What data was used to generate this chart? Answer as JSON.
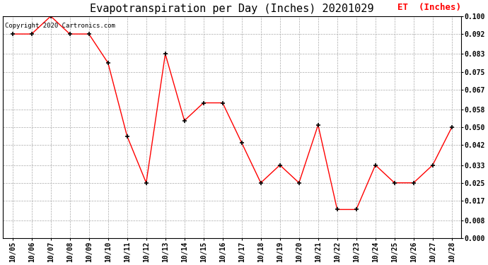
{
  "title": "Evapotranspiration per Day (Inches) 20201029",
  "legend_label": "ET  (Inches)",
  "copyright_text": "Copyright 2020 Cartronics.com",
  "dates": [
    "10/05",
    "10/06",
    "10/07",
    "10/08",
    "10/09",
    "10/10",
    "10/11",
    "10/12",
    "10/13",
    "10/14",
    "10/15",
    "10/16",
    "10/17",
    "10/18",
    "10/19",
    "10/20",
    "10/21",
    "10/22",
    "10/23",
    "10/24",
    "10/25",
    "10/26",
    "10/27",
    "10/28"
  ],
  "values": [
    0.092,
    0.092,
    0.1,
    0.092,
    0.092,
    0.079,
    0.046,
    0.025,
    0.083,
    0.053,
    0.061,
    0.061,
    0.043,
    0.025,
    0.033,
    0.025,
    0.051,
    0.013,
    0.013,
    0.033,
    0.025,
    0.025,
    0.033,
    0.05
  ],
  "ylim": [
    0.0,
    0.1
  ],
  "yticks": [
    0.0,
    0.008,
    0.017,
    0.025,
    0.033,
    0.042,
    0.05,
    0.058,
    0.067,
    0.075,
    0.083,
    0.092,
    0.1
  ],
  "line_color": "red",
  "marker_color": "black",
  "marker_style": "+",
  "marker_size": 5,
  "background_color": "white",
  "grid_color": "#aaaaaa",
  "title_fontsize": 11,
  "tick_fontsize": 7,
  "legend_color": "red",
  "legend_fontsize": 9,
  "copyright_color": "black",
  "copyright_fontsize": 6.5
}
